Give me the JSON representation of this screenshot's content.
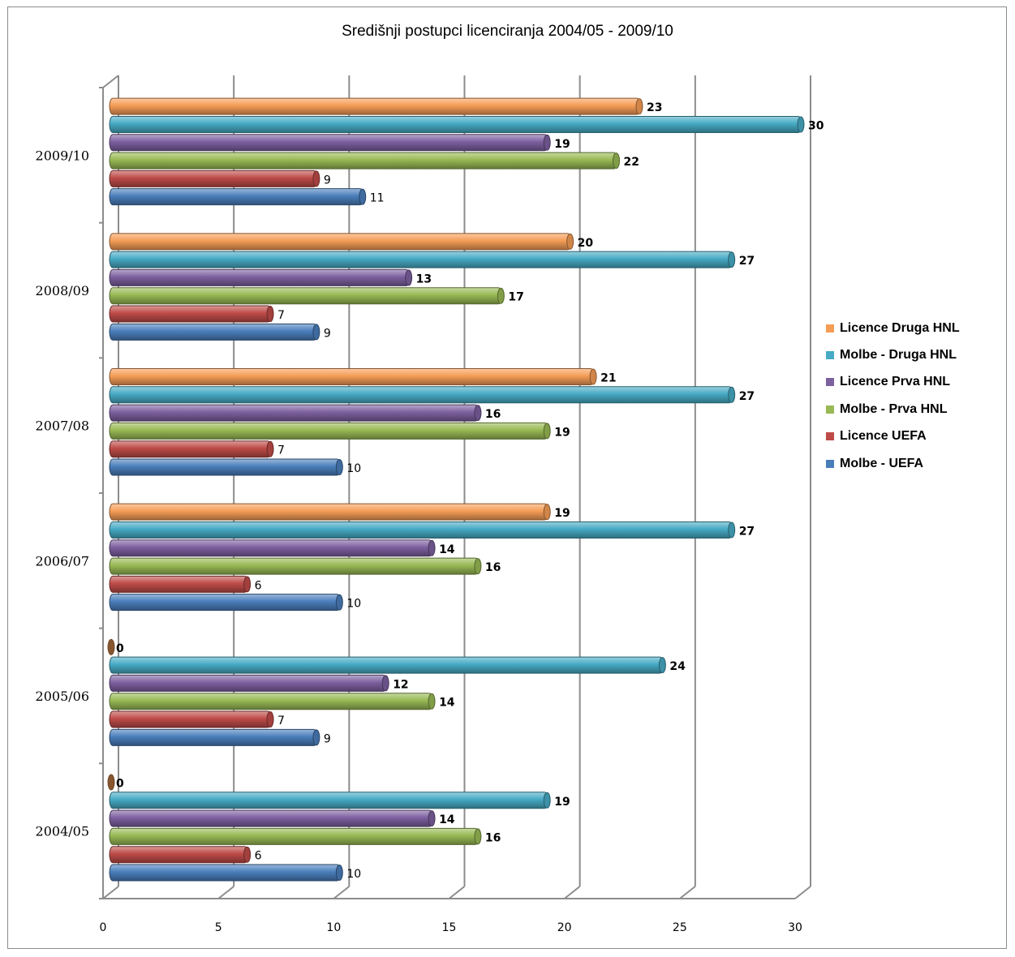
{
  "chart_data": {
    "type": "bar",
    "orientation": "horizontal",
    "title": "Središnji postupci licenciranja  2004/05 - 2009/10",
    "xlabel": "",
    "ylabel": "",
    "xlim": [
      0,
      30
    ],
    "x_ticks": [
      "0",
      "5",
      "10",
      "15",
      "20",
      "25",
      "30"
    ],
    "grid": true,
    "legend_position": "right",
    "categories": [
      "2004/05",
      "2005/06",
      "2006/07",
      "2007/08",
      "2008/09",
      "2009/10"
    ],
    "series": [
      {
        "name": "Molbe - UEFA",
        "color": "#4a7ebb",
        "values": [
          10,
          9,
          10,
          10,
          9,
          11
        ]
      },
      {
        "name": "Licence UEFA",
        "color": "#be4b48",
        "values": [
          6,
          7,
          6,
          7,
          7,
          9
        ]
      },
      {
        "name": "Molbe - Prva HNL",
        "color": "#98b954",
        "values": [
          16,
          14,
          16,
          19,
          17,
          22
        ]
      },
      {
        "name": "Licence Prva HNL",
        "color": "#7d60a0",
        "values": [
          14,
          12,
          14,
          16,
          13,
          19
        ]
      },
      {
        "name": "Molbe - Druga HNL",
        "color": "#46aac4",
        "values": [
          19,
          24,
          27,
          27,
          27,
          30
        ]
      },
      {
        "name": "Licence Druga HNL",
        "color": "#f59d56",
        "values": [
          0,
          0,
          19,
          21,
          20,
          23
        ]
      }
    ]
  }
}
